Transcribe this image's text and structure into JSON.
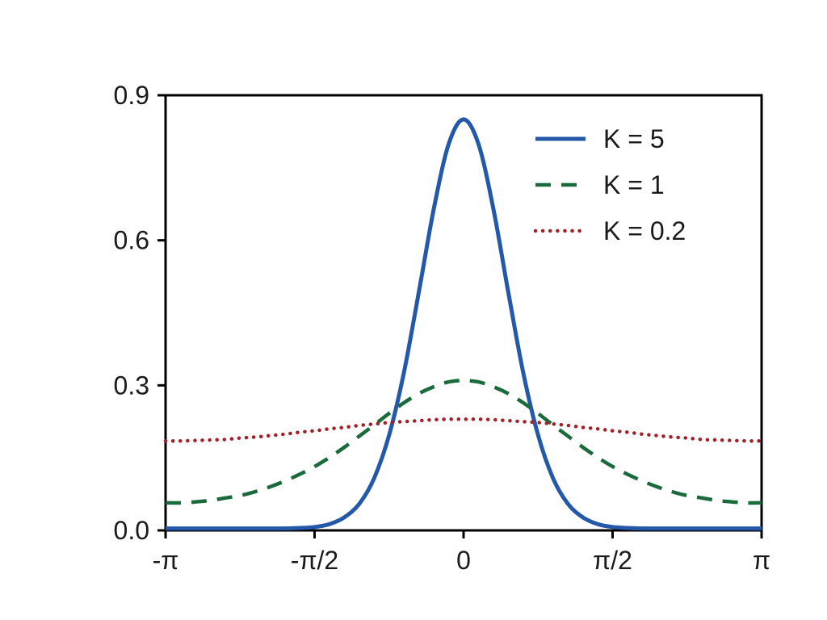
{
  "figure": {
    "background": "#ffffff",
    "axis_color": "#000000",
    "tick_label_color": "#1a1a1a"
  },
  "chart_data": {
    "type": "line",
    "title": "",
    "xlabel": "",
    "ylabel": "",
    "x_unit": "x over pi (radians / π)",
    "xlim_over_pi": [
      -1,
      1
    ],
    "ylim": [
      0,
      0.9
    ],
    "grid": false,
    "x_ticks": [
      {
        "pos": -1,
        "label": "-π"
      },
      {
        "pos": -0.5,
        "label": "-π/2"
      },
      {
        "pos": 0,
        "label": "0"
      },
      {
        "pos": 0.5,
        "label": "π/2"
      },
      {
        "pos": 1,
        "label": "π"
      }
    ],
    "y_ticks": [
      {
        "pos": 0.0,
        "label": "0.0"
      },
      {
        "pos": 0.3,
        "label": "0.3"
      },
      {
        "pos": 0.6,
        "label": "0.6"
      },
      {
        "pos": 0.9,
        "label": "0.9"
      }
    ],
    "x_over_pi": [
      -1,
      -0.95,
      -0.9,
      -0.85,
      -0.8,
      -0.75,
      -0.7,
      -0.65,
      -0.6,
      -0.55,
      -0.5,
      -0.45,
      -0.4,
      -0.35,
      -0.3,
      -0.25,
      -0.2,
      -0.15,
      -0.1,
      -0.05,
      0,
      0.05,
      0.1,
      0.15,
      0.2,
      0.25,
      0.3,
      0.35,
      0.4,
      0.45,
      0.5,
      0.55,
      0.6,
      0.65,
      0.7,
      0.75,
      0.8,
      0.85,
      0.9,
      0.95,
      1
    ],
    "series": [
      {
        "name": "K = 5",
        "color": "#2458a8",
        "style": "solid",
        "y": [
          0.004,
          0.004,
          0.004,
          0.004,
          0.004,
          0.004,
          0.004,
          0.004,
          0.004,
          0.005,
          0.007,
          0.013,
          0.027,
          0.055,
          0.108,
          0.197,
          0.327,
          0.493,
          0.665,
          0.799,
          0.85,
          0.799,
          0.665,
          0.493,
          0.327,
          0.197,
          0.108,
          0.055,
          0.027,
          0.013,
          0.007,
          0.005,
          0.004,
          0.004,
          0.004,
          0.004,
          0.004,
          0.004,
          0.004,
          0.004,
          0.004
        ]
      },
      {
        "name": "K = 1",
        "color": "#1a6b3b",
        "style": "dashed",
        "y": [
          0.057,
          0.057,
          0.059,
          0.062,
          0.067,
          0.072,
          0.08,
          0.09,
          0.102,
          0.116,
          0.132,
          0.151,
          0.172,
          0.195,
          0.218,
          0.242,
          0.264,
          0.283,
          0.297,
          0.307,
          0.31,
          0.307,
          0.297,
          0.283,
          0.264,
          0.242,
          0.218,
          0.195,
          0.172,
          0.151,
          0.132,
          0.116,
          0.102,
          0.09,
          0.08,
          0.072,
          0.067,
          0.062,
          0.059,
          0.057,
          0.057
        ]
      },
      {
        "name": "K = 0.2",
        "color": "#a32128",
        "style": "dotted",
        "y": [
          0.185,
          0.185,
          0.186,
          0.187,
          0.188,
          0.191,
          0.193,
          0.196,
          0.199,
          0.203,
          0.206,
          0.21,
          0.213,
          0.217,
          0.22,
          0.223,
          0.225,
          0.227,
          0.229,
          0.23,
          0.23,
          0.23,
          0.229,
          0.227,
          0.225,
          0.223,
          0.22,
          0.217,
          0.213,
          0.21,
          0.206,
          0.203,
          0.199,
          0.196,
          0.193,
          0.191,
          0.188,
          0.187,
          0.186,
          0.185,
          0.185
        ]
      }
    ],
    "legend": {
      "position": "upper-right",
      "frame": false
    }
  }
}
